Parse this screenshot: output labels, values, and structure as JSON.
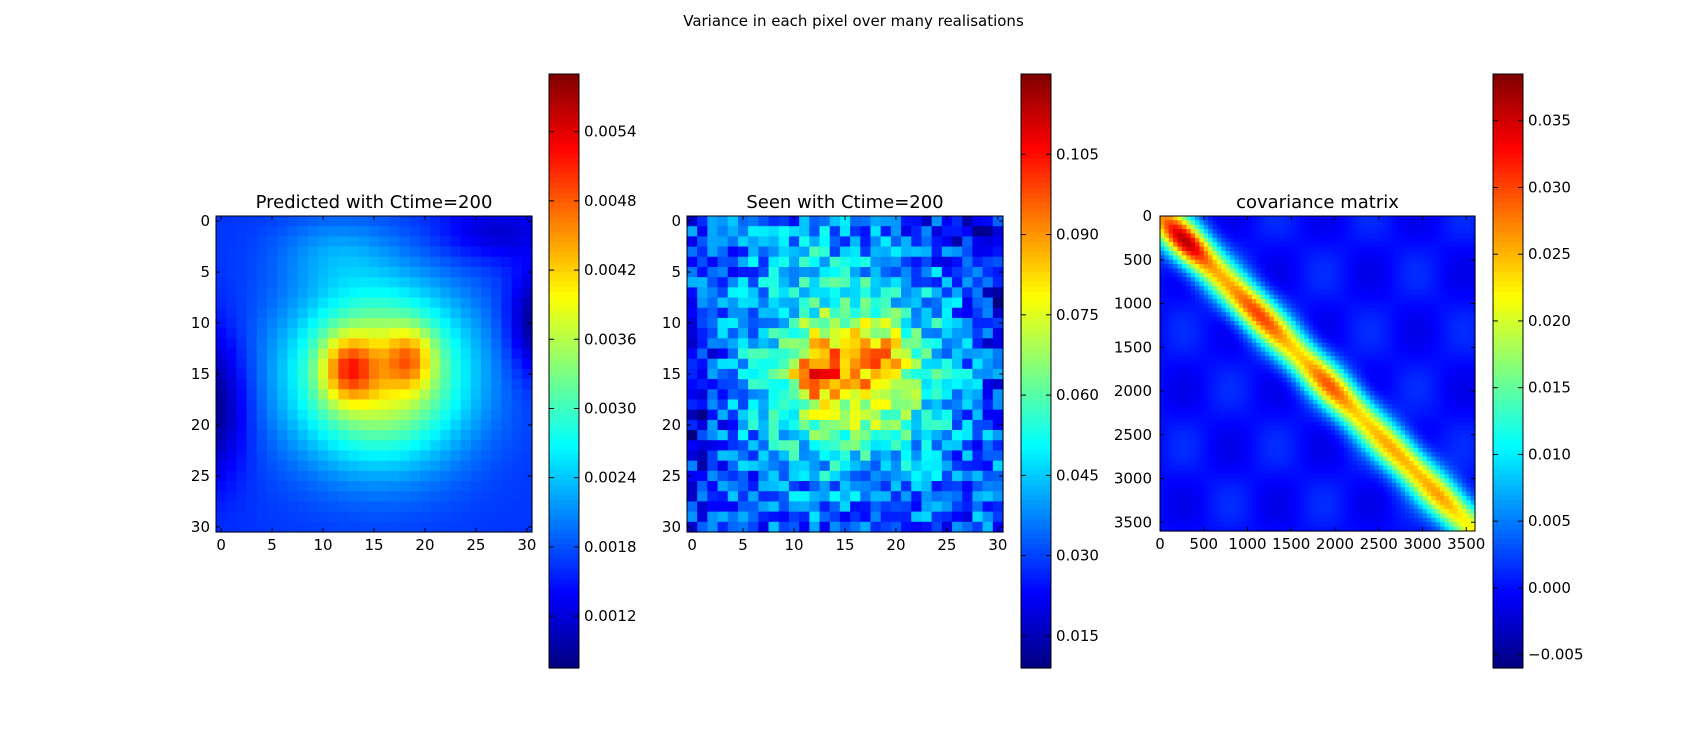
{
  "figure": {
    "suptitle": "Variance in each pixel over many realisations"
  },
  "chart_data": [
    {
      "type": "heatmap",
      "title": "Predicted with Ctime=200",
      "xlabel": "",
      "ylabel": "",
      "colormap": "jet",
      "grid": false,
      "xlim": [
        0,
        30
      ],
      "ylim": [
        30,
        0
      ],
      "xticks": [
        0,
        5,
        10,
        15,
        20,
        25,
        30
      ],
      "yticks": [
        0,
        5,
        10,
        15,
        20,
        25,
        30
      ],
      "xtick_labels": [
        "0",
        "5",
        "10",
        "15",
        "20",
        "25",
        "30"
      ],
      "ytick_labels": [
        "0",
        "5",
        "10",
        "15",
        "20",
        "25",
        "30"
      ],
      "grid_size": 31,
      "value_range": [
        0.00075,
        0.0059
      ],
      "description_of_field": "smooth blob centered near (x=15, y=15) with two peak lobes near (12,14) and (18,13); low values at left edge around y=18 and right edge around y=10",
      "colorbar": {
        "min": 0.00075,
        "max": 0.0059,
        "ticks": [
          0.0012,
          0.0018,
          0.0024,
          0.003,
          0.0036,
          0.0042,
          0.0048,
          0.0054
        ],
        "tick_labels": [
          "0.0012",
          "0.0018",
          "0.0024",
          "0.0030",
          "0.0036",
          "0.0042",
          "0.0048",
          "0.0054"
        ]
      }
    },
    {
      "type": "heatmap",
      "title": "Seen with Ctime=200",
      "xlabel": "",
      "ylabel": "",
      "colormap": "jet",
      "grid": false,
      "xlim": [
        0,
        30
      ],
      "ylim": [
        30,
        0
      ],
      "xticks": [
        0,
        5,
        10,
        15,
        20,
        25,
        30
      ],
      "yticks": [
        0,
        5,
        10,
        15,
        20,
        25,
        30
      ],
      "xtick_labels": [
        "0",
        "5",
        "10",
        "15",
        "20",
        "25",
        "30"
      ],
      "ytick_labels": [
        "0",
        "5",
        "10",
        "15",
        "20",
        "25",
        "30"
      ],
      "grid_size": 31,
      "value_range": [
        0.009,
        0.12
      ],
      "description_of_field": "noisy version of the predicted pattern; hot pixels concentrated around x=10-20, y=10-20",
      "colorbar": {
        "min": 0.009,
        "max": 0.12,
        "ticks": [
          0.015,
          0.03,
          0.045,
          0.06,
          0.075,
          0.09,
          0.105
        ],
        "tick_labels": [
          "0.015",
          "0.030",
          "0.045",
          "0.060",
          "0.075",
          "0.090",
          "0.105"
        ]
      }
    },
    {
      "type": "heatmap",
      "title": "covariance matrix",
      "xlabel": "",
      "ylabel": "",
      "colormap": "jet",
      "grid": false,
      "xlim": [
        0,
        3600
      ],
      "ylim": [
        3600,
        0
      ],
      "xticks": [
        0,
        500,
        1000,
        1500,
        2000,
        2500,
        3000,
        3500
      ],
      "yticks": [
        0,
        500,
        1000,
        1500,
        2000,
        2500,
        3000,
        3500
      ],
      "xtick_labels": [
        "0",
        "500",
        "1000",
        "1500",
        "2000",
        "2500",
        "3000",
        "3500"
      ],
      "ytick_labels": [
        "0",
        "500",
        "1000",
        "1500",
        "2000",
        "2500",
        "3000",
        "3500"
      ],
      "value_range": [
        -0.006,
        0.0385
      ],
      "description_of_field": "strong diagonal band with peaks near 300, 1100, 1950, 2700, 3250; near-zero off-diagonal",
      "colorbar": {
        "min": -0.006,
        "max": 0.0385,
        "ticks": [
          -0.005,
          0.0,
          0.005,
          0.01,
          0.015,
          0.02,
          0.025,
          0.03,
          0.035
        ],
        "tick_labels": [
          "−0.005",
          "0.000",
          "0.005",
          "0.010",
          "0.015",
          "0.020",
          "0.025",
          "0.030",
          "0.035"
        ]
      }
    }
  ]
}
